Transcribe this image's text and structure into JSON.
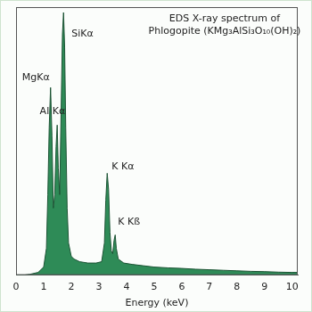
{
  "chart_data": {
    "type": "line",
    "title": "EDS X-ray spectrum of Phlogopite (KMg₃AlSi₃O₁₀(OH)₂)",
    "x_label": "Energy (keV)",
    "x": [
      0.0,
      0.3,
      0.5,
      0.8,
      1.0,
      1.1,
      1.15,
      1.2,
      1.25,
      1.3,
      1.35,
      1.4,
      1.45,
      1.49,
      1.53,
      1.58,
      1.63,
      1.68,
      1.72,
      1.76,
      1.8,
      1.85,
      1.9,
      2.0,
      2.1,
      2.3,
      2.6,
      2.9,
      3.1,
      3.2,
      3.25,
      3.3,
      3.35,
      3.4,
      3.45,
      3.5,
      3.55,
      3.59,
      3.63,
      3.7,
      3.9,
      4.2,
      4.6,
      5.0,
      5.5,
      6.0,
      6.5,
      7.0,
      7.5,
      8.0,
      8.5,
      9.0,
      9.5,
      10.0,
      10.2
    ],
    "values": [
      0,
      0,
      0.3,
      1,
      3,
      10,
      30,
      55,
      70,
      52,
      25,
      30,
      48,
      56,
      40,
      30,
      60,
      90,
      98,
      85,
      55,
      25,
      12,
      7,
      6,
      5,
      4.5,
      4.5,
      5,
      12,
      28,
      38,
      32,
      16,
      9,
      8,
      13,
      15,
      10,
      6,
      4.5,
      4,
      3.5,
      3,
      2.7,
      2.5,
      2.2,
      2,
      1.8,
      1.6,
      1.4,
      1.3,
      1.1,
      1,
      1
    ],
    "color": "#2e8b57",
    "xlim": [
      0,
      10.2
    ],
    "xticks": [
      0,
      1,
      2,
      3,
      4,
      5,
      6,
      7,
      8,
      9,
      10
    ],
    "ylim": [
      0,
      100
    ],
    "grid": false,
    "tick_labels": "x",
    "annotations": [
      {
        "text": "MgKα",
        "x": 1.25
      },
      {
        "text": "Al Kα",
        "x": 1.49
      },
      {
        "text": "SiKα",
        "x": 1.72
      },
      {
        "text": "K Kα",
        "x": 3.3
      },
      {
        "text": "K Kß",
        "x": 3.59
      }
    ]
  }
}
